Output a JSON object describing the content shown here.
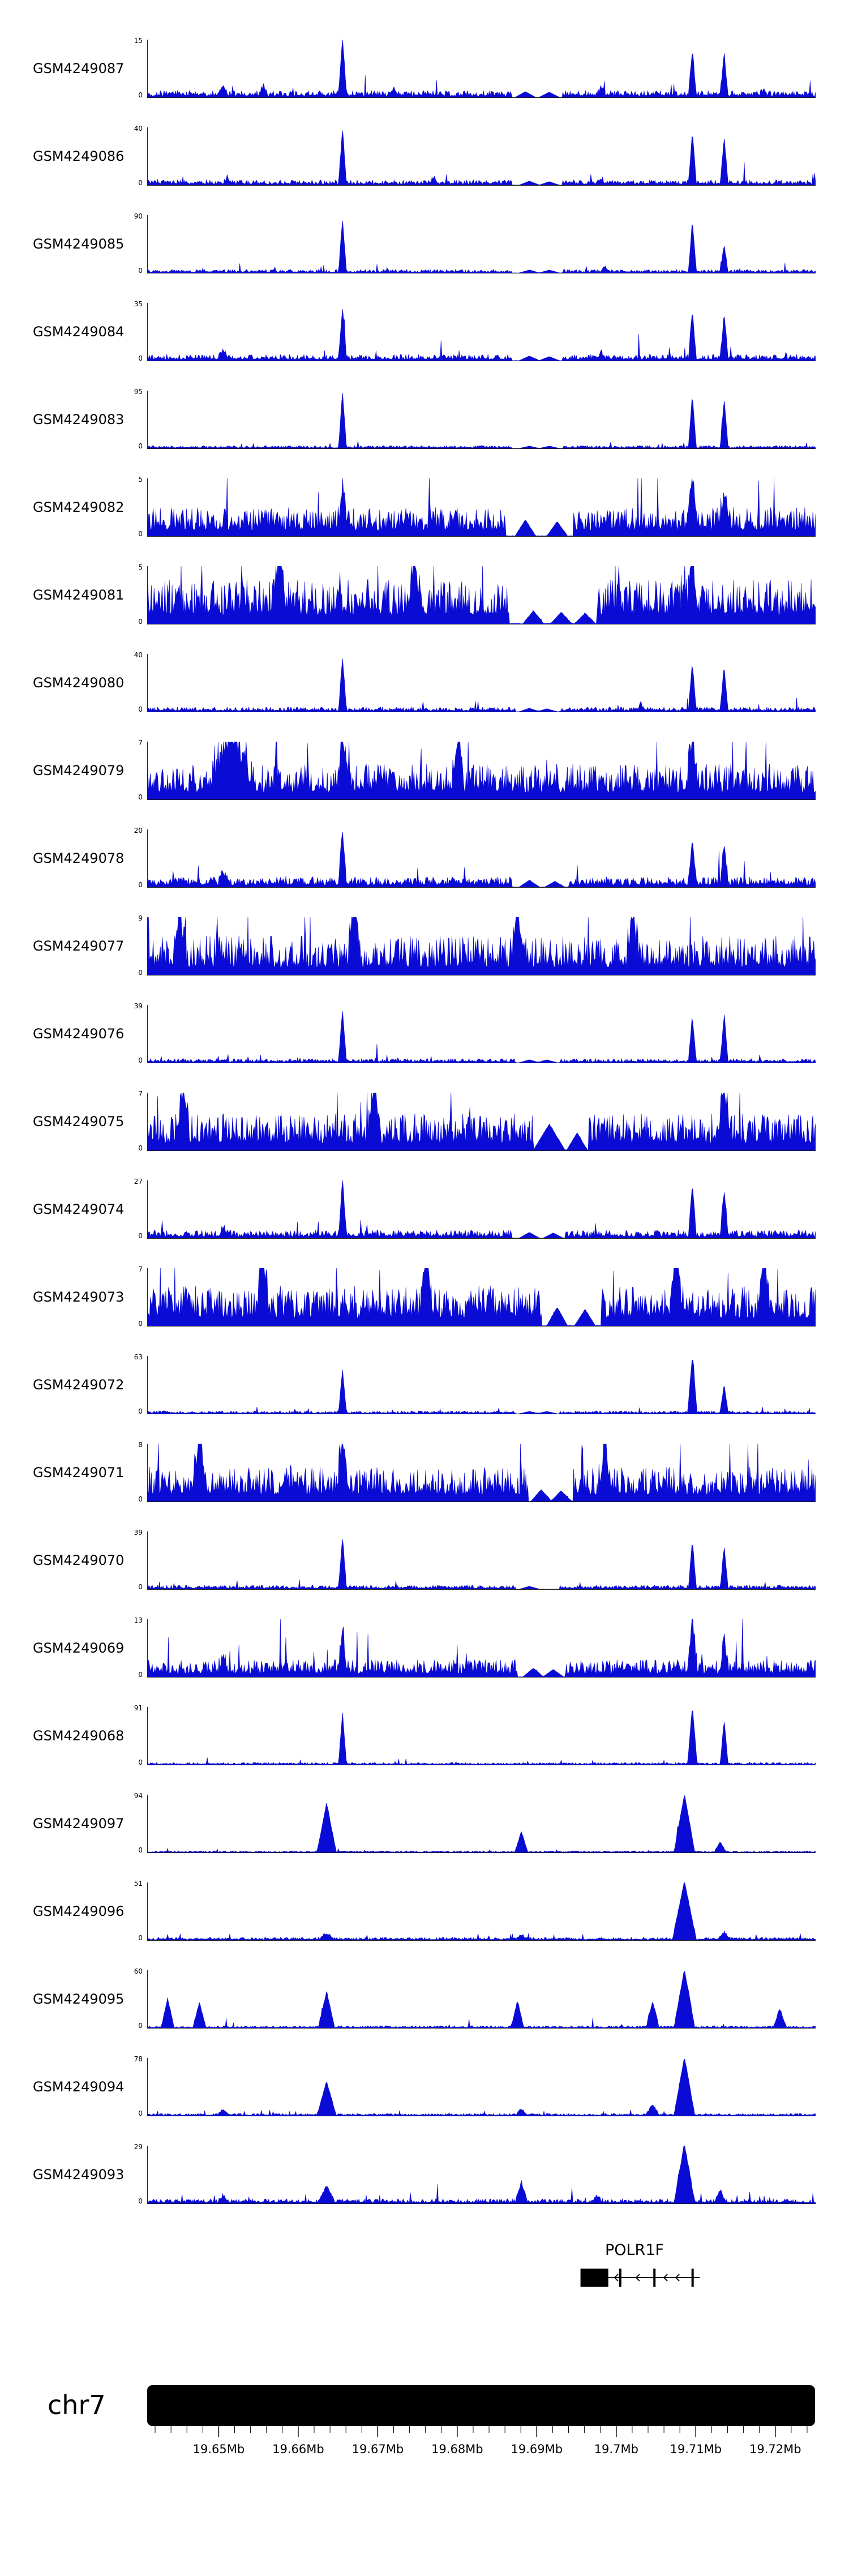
{
  "figure": {
    "accent_color": "#0b0bd6",
    "background": "#ffffff",
    "tracks_ymin_label": "0"
  },
  "chart_data": {
    "type": "area",
    "title": "",
    "x_axis": {
      "range_mb": [
        19.641,
        19.725
      ],
      "unit": "Mb",
      "ticks": [
        {
          "mb": 19.65,
          "label": "19.65Mb"
        },
        {
          "mb": 19.66,
          "label": "19.66Mb"
        },
        {
          "mb": 19.67,
          "label": "19.67Mb"
        },
        {
          "mb": 19.68,
          "label": "19.68Mb"
        },
        {
          "mb": 19.69,
          "label": "19.69Mb"
        },
        {
          "mb": 19.7,
          "label": "19.7Mb"
        },
        {
          "mb": 19.71,
          "label": "19.71Mb"
        },
        {
          "mb": 19.72,
          "label": "19.72Mb"
        }
      ],
      "minor_tick": {
        "start": 19.642,
        "end": 19.724,
        "step": 0.002
      }
    },
    "tracks": [
      {
        "name": "GSM4249087",
        "ymax": "15",
        "base": 0.12,
        "seed": 101,
        "peaks": [
          [
            19.6655,
            1.0,
            0.0005
          ],
          [
            19.7095,
            0.78,
            0.0005
          ],
          [
            19.7135,
            0.7,
            0.0005
          ],
          [
            19.6505,
            0.18,
            0.0006
          ],
          [
            19.6555,
            0.15,
            0.0005
          ],
          [
            19.672,
            0.12,
            0.0005
          ],
          [
            19.698,
            0.12,
            0.0005
          ],
          [
            19.7185,
            0.1,
            0.0005
          ]
        ],
        "gap": [
          19.6868,
          19.6932
        ],
        "tris": [
          [
            19.6885,
            0.1
          ],
          [
            19.6915,
            0.09
          ]
        ]
      },
      {
        "name": "GSM4249086",
        "ymax": "40",
        "base": 0.09,
        "seed": 102,
        "peaks": [
          [
            19.6655,
            0.95,
            0.0005
          ],
          [
            19.7095,
            0.88,
            0.0005
          ],
          [
            19.7135,
            0.8,
            0.0005
          ],
          [
            19.651,
            0.1,
            0.0005
          ],
          [
            19.677,
            0.1,
            0.0005
          ],
          [
            19.698,
            0.09,
            0.0005
          ]
        ],
        "gap": [
          19.6868,
          19.6932
        ],
        "tris": [
          [
            19.689,
            0.07
          ],
          [
            19.6915,
            0.06
          ]
        ]
      },
      {
        "name": "GSM4249085",
        "ymax": "90",
        "base": 0.06,
        "seed": 103,
        "peaks": [
          [
            19.6655,
            0.92,
            0.0005
          ],
          [
            19.7095,
            0.88,
            0.0005
          ],
          [
            19.7135,
            0.45,
            0.0005
          ],
          [
            19.6985,
            0.08,
            0.0005
          ]
        ],
        "gap": [
          19.6868,
          19.6932
        ],
        "tris": [
          [
            19.689,
            0.05
          ],
          [
            19.6915,
            0.05
          ]
        ]
      },
      {
        "name": "GSM4249084",
        "ymax": "35",
        "base": 0.11,
        "seed": 104,
        "peaks": [
          [
            19.6655,
            0.9,
            0.0005
          ],
          [
            19.7095,
            0.82,
            0.0005
          ],
          [
            19.7135,
            0.78,
            0.0005
          ],
          [
            19.6505,
            0.12,
            0.0006
          ],
          [
            19.698,
            0.1,
            0.0005
          ]
        ],
        "gap": [
          19.6868,
          19.6932
        ],
        "tris": [
          [
            19.689,
            0.08
          ],
          [
            19.6915,
            0.07
          ]
        ]
      },
      {
        "name": "GSM4249083",
        "ymax": "95",
        "base": 0.05,
        "seed": 105,
        "peaks": [
          [
            19.6655,
            0.97,
            0.0005
          ],
          [
            19.7095,
            0.92,
            0.0005
          ],
          [
            19.7135,
            0.85,
            0.0005
          ]
        ],
        "gap": [
          19.6868,
          19.6932
        ],
        "tris": [
          [
            19.689,
            0.04
          ],
          [
            19.6915,
            0.04
          ]
        ]
      },
      {
        "name": "GSM4249082",
        "ymax": "5",
        "base": 0.5,
        "seed": 106,
        "peaks": [
          [
            19.7095,
            0.85,
            0.0007
          ],
          [
            19.6655,
            0.7,
            0.0006
          ],
          [
            19.7135,
            0.6,
            0.0006
          ]
        ],
        "gap": [
          19.686,
          19.6945
        ],
        "tris": [
          [
            19.6885,
            0.28
          ],
          [
            19.6925,
            0.25
          ]
        ]
      },
      {
        "name": "GSM4249081",
        "ymax": "5",
        "base": 0.78,
        "seed": 107,
        "peaks": [
          [
            19.6575,
            0.95,
            0.0008
          ],
          [
            19.6745,
            0.9,
            0.0008
          ],
          [
            19.7095,
            0.85,
            0.0007
          ]
        ],
        "gap": [
          19.6865,
          19.6975
        ],
        "tris": [
          [
            19.6895,
            0.22
          ],
          [
            19.693,
            0.2
          ],
          [
            19.696,
            0.18
          ]
        ]
      },
      {
        "name": "GSM4249080",
        "ymax": "40",
        "base": 0.08,
        "seed": 108,
        "peaks": [
          [
            19.6655,
            0.92,
            0.0005
          ],
          [
            19.7095,
            0.8,
            0.0005
          ],
          [
            19.7135,
            0.75,
            0.0005
          ],
          [
            19.703,
            0.1,
            0.0005
          ]
        ],
        "gap": [
          19.6872,
          19.6928
        ],
        "tris": [
          [
            19.689,
            0.06
          ],
          [
            19.6912,
            0.05
          ]
        ]
      },
      {
        "name": "GSM4249079",
        "ymax": "7",
        "base": 0.62,
        "seed": 109,
        "peaks": [
          [
            19.6515,
            0.9,
            0.0028
          ],
          [
            19.6655,
            0.85,
            0.0007
          ],
          [
            19.68,
            0.85,
            0.0008
          ],
          [
            19.7095,
            0.8,
            0.0007
          ]
        ],
        "gap": null,
        "tris": null
      },
      {
        "name": "GSM4249078",
        "ymax": "20",
        "base": 0.18,
        "seed": 110,
        "peaks": [
          [
            19.6655,
            0.9,
            0.0005
          ],
          [
            19.7095,
            0.82,
            0.0005
          ],
          [
            19.7135,
            0.72,
            0.0005
          ],
          [
            19.6505,
            0.2,
            0.0006
          ]
        ],
        "gap": [
          19.6868,
          19.694
        ],
        "tris": [
          [
            19.689,
            0.12
          ],
          [
            19.6922,
            0.1
          ]
        ]
      },
      {
        "name": "GSM4249077",
        "ymax": "9",
        "base": 0.68,
        "seed": 111,
        "peaks": [
          [
            19.645,
            0.9,
            0.0008
          ],
          [
            19.667,
            0.95,
            0.0008
          ],
          [
            19.6875,
            0.9,
            0.0008
          ],
          [
            19.702,
            0.85,
            0.0008
          ]
        ],
        "gap": null,
        "tris": null
      },
      {
        "name": "GSM4249076",
        "ymax": "39",
        "base": 0.07,
        "seed": 112,
        "peaks": [
          [
            19.6655,
            0.9,
            0.0005
          ],
          [
            19.7095,
            0.78,
            0.0005
          ],
          [
            19.7135,
            0.82,
            0.0005
          ]
        ],
        "gap": [
          19.6872,
          19.6928
        ],
        "tris": [
          [
            19.689,
            0.05
          ],
          [
            19.6912,
            0.05
          ]
        ]
      },
      {
        "name": "GSM4249075",
        "ymax": "7",
        "base": 0.64,
        "seed": 113,
        "peaks": [
          [
            19.6455,
            0.9,
            0.0008
          ],
          [
            19.6695,
            1.0,
            0.0008
          ],
          [
            19.7135,
            0.9,
            0.0008
          ]
        ],
        "gap": [
          19.6895,
          19.6965
        ],
        "tris": [
          [
            19.6915,
            0.45,
            0.002
          ],
          [
            19.695,
            0.3
          ]
        ]
      },
      {
        "name": "GSM4249074",
        "ymax": "27",
        "base": 0.14,
        "seed": 114,
        "peaks": [
          [
            19.6655,
            0.95,
            0.0005
          ],
          [
            19.7095,
            0.85,
            0.0005
          ],
          [
            19.7135,
            0.8,
            0.0005
          ],
          [
            19.6505,
            0.15,
            0.0005
          ]
        ],
        "gap": [
          19.6868,
          19.6935
        ],
        "tris": [
          [
            19.689,
            0.1
          ],
          [
            19.692,
            0.09
          ]
        ]
      },
      {
        "name": "GSM4249073",
        "ymax": "7",
        "base": 0.7,
        "seed": 115,
        "peaks": [
          [
            19.6555,
            0.95,
            0.0008
          ],
          [
            19.676,
            0.9,
            0.0008
          ],
          [
            19.7075,
            0.95,
            0.0008
          ],
          [
            19.7185,
            0.9,
            0.0008
          ]
        ],
        "gap": [
          19.6905,
          19.698
        ],
        "tris": [
          [
            19.6925,
            0.32
          ],
          [
            19.696,
            0.28
          ]
        ]
      },
      {
        "name": "GSM4249072",
        "ymax": "63",
        "base": 0.05,
        "seed": 116,
        "peaks": [
          [
            19.6655,
            0.75,
            0.0005
          ],
          [
            19.7095,
            1.0,
            0.0006
          ],
          [
            19.7135,
            0.5,
            0.0005
          ]
        ],
        "gap": [
          19.6872,
          19.6928
        ],
        "tris": [
          [
            19.689,
            0.04
          ],
          [
            19.6912,
            0.04
          ]
        ]
      },
      {
        "name": "GSM4249071",
        "ymax": "8",
        "base": 0.6,
        "seed": 117,
        "peaks": [
          [
            19.6475,
            0.9,
            0.0008
          ],
          [
            19.6655,
            0.85,
            0.0007
          ],
          [
            19.6985,
            0.8,
            0.0008
          ]
        ],
        "gap": [
          19.6888,
          19.6945
        ],
        "tris": [
          [
            19.6905,
            0.2
          ],
          [
            19.693,
            0.18
          ]
        ]
      },
      {
        "name": "GSM4249070",
        "ymax": "39",
        "base": 0.07,
        "seed": 118,
        "peaks": [
          [
            19.6655,
            0.88,
            0.0005
          ],
          [
            19.7095,
            0.82,
            0.0005
          ],
          [
            19.7135,
            0.72,
            0.0005
          ]
        ],
        "gap": [
          19.6872,
          19.6928
        ],
        "tris": [
          [
            19.689,
            0.05
          ]
        ]
      },
      {
        "name": "GSM4249069",
        "ymax": "13",
        "base": 0.3,
        "seed": 119,
        "peaks": [
          [
            19.6655,
            0.78,
            0.0005
          ],
          [
            19.7095,
            0.9,
            0.0006
          ],
          [
            19.7135,
            0.6,
            0.0005
          ],
          [
            19.6505,
            0.3,
            0.0006
          ]
        ],
        "gap": [
          19.6875,
          19.6935
        ],
        "tris": [
          [
            19.6895,
            0.15
          ],
          [
            19.692,
            0.13
          ]
        ]
      },
      {
        "name": "GSM4249068",
        "ymax": "91",
        "base": 0.04,
        "seed": 120,
        "peaks": [
          [
            19.6655,
            0.9,
            0.0005
          ],
          [
            19.7095,
            1.0,
            0.0006
          ],
          [
            19.7135,
            0.78,
            0.0005
          ]
        ],
        "gap": null,
        "tris": null
      },
      {
        "name": "GSM4249097",
        "ymax": "94",
        "base": 0.03,
        "seed": 121,
        "peaks": [
          [
            19.6635,
            0.85,
            0.0012
          ],
          [
            19.688,
            0.35,
            0.0008
          ],
          [
            19.7085,
            1.0,
            0.0013
          ],
          [
            19.713,
            0.18,
            0.0007
          ]
        ],
        "gap": null,
        "tris": null
      },
      {
        "name": "GSM4249096",
        "ymax": "51",
        "base": 0.05,
        "seed": 122,
        "peaks": [
          [
            19.6635,
            0.1,
            0.001
          ],
          [
            19.688,
            0.07,
            0.0008
          ],
          [
            19.7085,
            1.0,
            0.0015
          ],
          [
            19.7135,
            0.12,
            0.0008
          ]
        ],
        "gap": null,
        "tris": null
      },
      {
        "name": "GSM4249095",
        "ymax": "60",
        "base": 0.04,
        "seed": 123,
        "peaks": [
          [
            19.6435,
            0.5,
            0.0008
          ],
          [
            19.6475,
            0.42,
            0.0008
          ],
          [
            19.6635,
            0.62,
            0.001
          ],
          [
            19.6875,
            0.45,
            0.0008
          ],
          [
            19.7045,
            0.45,
            0.0008
          ],
          [
            19.7085,
            1.0,
            0.0013
          ],
          [
            19.7205,
            0.32,
            0.0008
          ]
        ],
        "gap": null,
        "tris": null
      },
      {
        "name": "GSM4249094",
        "ymax": "78",
        "base": 0.04,
        "seed": 124,
        "peaks": [
          [
            19.6505,
            0.1,
            0.0007
          ],
          [
            19.6635,
            0.58,
            0.0012
          ],
          [
            19.688,
            0.1,
            0.0007
          ],
          [
            19.7045,
            0.18,
            0.0008
          ],
          [
            19.7085,
            1.0,
            0.0013
          ]
        ],
        "gap": null,
        "tris": null
      },
      {
        "name": "GSM4249093",
        "ymax": "29",
        "base": 0.08,
        "seed": 125,
        "peaks": [
          [
            19.6505,
            0.1,
            0.0007
          ],
          [
            19.6635,
            0.28,
            0.001
          ],
          [
            19.688,
            0.33,
            0.0008
          ],
          [
            19.6975,
            0.1,
            0.0007
          ],
          [
            19.7085,
            1.0,
            0.0013
          ],
          [
            19.713,
            0.2,
            0.0007
          ]
        ],
        "gap": null,
        "tris": null
      }
    ],
    "gene_track": {
      "gene": "POLR1F",
      "strand": "-",
      "box_mb": [
        19.6955,
        19.699
      ],
      "line_mb": [
        19.699,
        19.7105
      ],
      "exon_bars_mb": [
        19.7005,
        19.7048,
        19.7096
      ],
      "arrow_mb": [
        19.6998,
        19.7025,
        19.706,
        19.7075
      ]
    },
    "ideogram": {
      "chrom_label": "chr7"
    }
  }
}
